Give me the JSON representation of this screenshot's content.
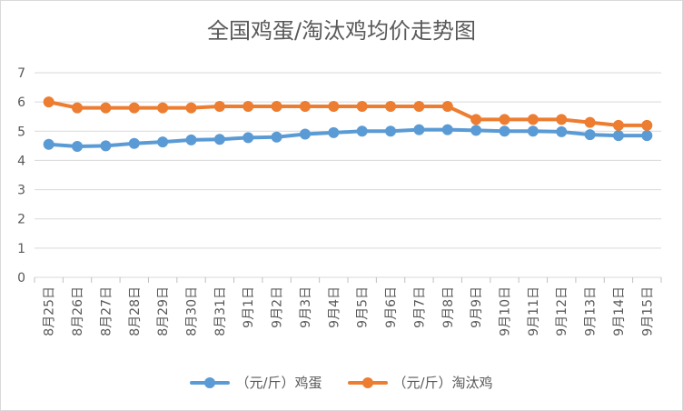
{
  "chart_data": {
    "type": "line",
    "title": "全国鸡蛋/淘汰鸡均价走势图",
    "categories": [
      "8月25日",
      "8月26日",
      "8月27日",
      "8月28日",
      "8月29日",
      "8月30日",
      "8月31日",
      "9月1日",
      "9月2日",
      "9月3日",
      "9月4日",
      "9月5日",
      "9月6日",
      "9月7日",
      "9月8日",
      "9月9日",
      "9月10日",
      "9月11日",
      "9月12日",
      "9月13日",
      "9月14日",
      "9月15日"
    ],
    "series": [
      {
        "name": "（元/斤）鸡蛋",
        "color": "#5B9BD5",
        "values": [
          4.55,
          4.48,
          4.5,
          4.58,
          4.63,
          4.7,
          4.72,
          4.78,
          4.8,
          4.9,
          4.95,
          5.0,
          5.0,
          5.05,
          5.05,
          5.03,
          5.0,
          5.0,
          4.98,
          4.88,
          4.85,
          4.85
        ]
      },
      {
        "name": "（元/斤）淘汰鸡",
        "color": "#ED7D31",
        "values": [
          6.0,
          5.8,
          5.8,
          5.8,
          5.8,
          5.8,
          5.85,
          5.85,
          5.85,
          5.85,
          5.85,
          5.85,
          5.85,
          5.85,
          5.85,
          5.4,
          5.4,
          5.4,
          5.4,
          5.3,
          5.2,
          5.2
        ]
      }
    ],
    "ylim": [
      0,
      7
    ],
    "yticks": [
      "0",
      "1",
      "2",
      "3",
      "4",
      "5",
      "6",
      "7"
    ],
    "grid": true,
    "legend_position": "bottom",
    "xlabel": "",
    "ylabel": ""
  }
}
